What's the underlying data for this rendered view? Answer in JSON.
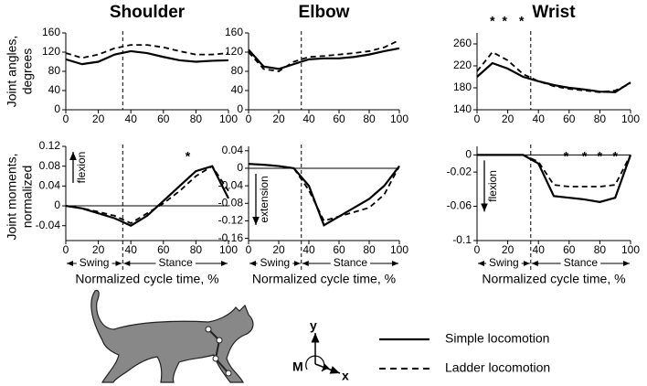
{
  "chart_data": [
    {
      "type": "line",
      "title": "Shoulder",
      "x": [
        0,
        10,
        20,
        30,
        40,
        50,
        60,
        70,
        80,
        90,
        100
      ],
      "xlim": [
        0,
        100
      ],
      "xticks": [
        0,
        20,
        40,
        60,
        80,
        100
      ],
      "ylim": [
        0,
        160
      ],
      "yticks": [
        0,
        40,
        80,
        120,
        160
      ],
      "divider": 35,
      "series": [
        {
          "name": "Simple locomotion",
          "color": "#000",
          "dash": false,
          "values": [
            105,
            95,
            100,
            115,
            122,
            118,
            110,
            103,
            100,
            102,
            103
          ]
        },
        {
          "name": "Ladder locomotion",
          "color": "#000",
          "dash": true,
          "values": [
            118,
            108,
            115,
            128,
            135,
            135,
            130,
            122,
            115,
            115,
            118
          ]
        }
      ]
    },
    {
      "type": "line",
      "title": "Elbow",
      "x": [
        0,
        10,
        20,
        30,
        40,
        50,
        60,
        70,
        80,
        90,
        100
      ],
      "xlim": [
        0,
        100
      ],
      "xticks": [
        0,
        20,
        40,
        60,
        80,
        100
      ],
      "ylim": [
        0,
        160
      ],
      "yticks": [
        0,
        40,
        80,
        120,
        160
      ],
      "divider": 35,
      "series": [
        {
          "name": "Simple locomotion",
          "color": "#000",
          "dash": false,
          "values": [
            125,
            90,
            85,
            95,
            105,
            107,
            107,
            110,
            115,
            122,
            128
          ]
        },
        {
          "name": "Ladder locomotion",
          "color": "#000",
          "dash": true,
          "values": [
            120,
            85,
            80,
            100,
            110,
            112,
            115,
            118,
            122,
            130,
            145
          ]
        }
      ]
    },
    {
      "type": "line",
      "title": "Wrist",
      "x": [
        0,
        10,
        20,
        30,
        40,
        50,
        60,
        70,
        80,
        90,
        100
      ],
      "xlim": [
        0,
        100
      ],
      "xticks": [
        0,
        20,
        40,
        60,
        80,
        100
      ],
      "ylim": [
        140,
        280
      ],
      "yticks": [
        140,
        180,
        220,
        260
      ],
      "divider": 35,
      "annotations": [
        {
          "text": "*",
          "x": 10
        },
        {
          "text": "*",
          "x": 18
        },
        {
          "text": "*",
          "x": 29
        }
      ],
      "series": [
        {
          "name": "Simple locomotion",
          "color": "#000",
          "dash": false,
          "values": [
            200,
            225,
            215,
            200,
            192,
            185,
            180,
            177,
            173,
            172,
            190
          ]
        },
        {
          "name": "Ladder locomotion",
          "color": "#000",
          "dash": true,
          "values": [
            210,
            245,
            230,
            205,
            192,
            183,
            178,
            175,
            172,
            175,
            188
          ]
        }
      ]
    },
    {
      "type": "line",
      "x": [
        0,
        10,
        20,
        30,
        40,
        50,
        60,
        70,
        80,
        90,
        100
      ],
      "xlim": [
        0,
        100
      ],
      "xticks": [
        0,
        20,
        40,
        60,
        80,
        100
      ],
      "ylim": [
        -0.07,
        0.12
      ],
      "yticks": [
        -0.04,
        0,
        0.04,
        0.08,
        0.12
      ],
      "divider": 35,
      "xlabel": "Normalized cycle time, %",
      "phases": [
        "Swing",
        "Stance"
      ],
      "direction": {
        "text": "flexion",
        "arrow": "up"
      },
      "annotations": [
        {
          "text": "*",
          "x": 75
        }
      ],
      "series": [
        {
          "name": "Simple locomotion",
          "color": "#000",
          "dash": false,
          "values": [
            0,
            -0.005,
            -0.015,
            -0.025,
            -0.04,
            -0.02,
            0.01,
            0.04,
            0.07,
            0.08,
            0.015
          ]
        },
        {
          "name": "Ladder locomotion",
          "color": "#000",
          "dash": true,
          "values": [
            0,
            -0.005,
            -0.012,
            -0.02,
            -0.035,
            -0.015,
            0.005,
            0.03,
            0.06,
            0.08,
            0.03
          ]
        }
      ]
    },
    {
      "type": "line",
      "x": [
        0,
        10,
        20,
        30,
        40,
        50,
        60,
        70,
        80,
        90,
        100
      ],
      "xlim": [
        0,
        100
      ],
      "xticks": [
        0,
        20,
        40,
        60,
        80,
        100
      ],
      "ylim": [
        -0.165,
        0.05
      ],
      "yticks": [
        -0.16,
        -0.12,
        -0.08,
        -0.04,
        0,
        0.04
      ],
      "divider": 35,
      "xlabel": "Normalized cycle time, %",
      "phases": [
        "Swing",
        "Stance"
      ],
      "direction": {
        "text": "extension",
        "arrow": "down"
      },
      "series": [
        {
          "name": "Simple locomotion",
          "color": "#000",
          "dash": false,
          "values": [
            0.01,
            0.008,
            0.005,
            0,
            -0.04,
            -0.13,
            -0.11,
            -0.09,
            -0.07,
            -0.04,
            0.005
          ]
        },
        {
          "name": "Ladder locomotion",
          "color": "#000",
          "dash": true,
          "values": [
            0.01,
            0.008,
            0.005,
            0,
            -0.05,
            -0.12,
            -0.11,
            -0.1,
            -0.09,
            -0.06,
            0.005
          ]
        }
      ]
    },
    {
      "type": "line",
      "x": [
        0,
        10,
        20,
        30,
        40,
        50,
        60,
        70,
        80,
        90,
        100
      ],
      "xlim": [
        0,
        100
      ],
      "xticks": [
        0,
        20,
        40,
        60,
        80,
        100
      ],
      "ylim": [
        -0.1,
        0.01
      ],
      "yticks": [
        -0.1,
        -0.06,
        -0.02,
        0
      ],
      "divider": 35,
      "xlabel": "Normalized cycle time, %",
      "phases": [
        "Swing",
        "Stance"
      ],
      "direction": {
        "text": "flexion",
        "arrow": "down"
      },
      "annotations": [
        {
          "text": "*",
          "x": 58
        },
        {
          "text": "*",
          "x": 70
        },
        {
          "text": "*",
          "x": 80
        },
        {
          "text": "*",
          "x": 90
        }
      ],
      "series": [
        {
          "name": "Simple locomotion",
          "color": "#000",
          "dash": false,
          "values": [
            0,
            0,
            0,
            0,
            -0.01,
            -0.048,
            -0.05,
            -0.052,
            -0.055,
            -0.05,
            0
          ]
        },
        {
          "name": "Ladder locomotion",
          "color": "#000",
          "dash": true,
          "values": [
            0,
            0,
            0,
            0,
            -0.008,
            -0.035,
            -0.037,
            -0.037,
            -0.037,
            -0.035,
            0
          ]
        }
      ]
    }
  ],
  "row_labels": [
    [
      "Joint angles,",
      "degrees"
    ],
    [
      "Joint moments,",
      "normalized"
    ]
  ],
  "axes_icon": {
    "y": "y",
    "x": "x",
    "moment": "M"
  }
}
